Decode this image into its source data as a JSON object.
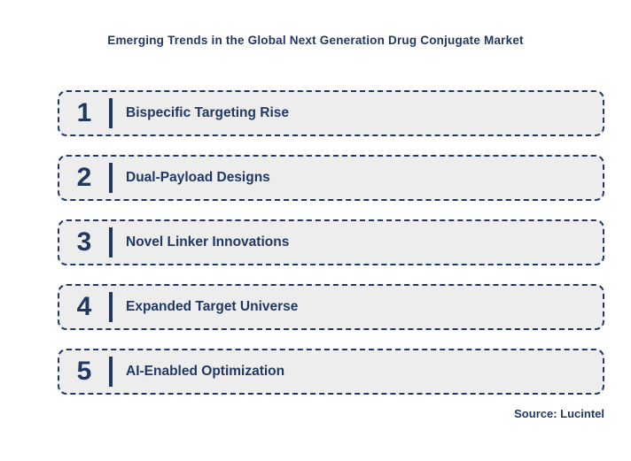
{
  "page": {
    "title": "Emerging Trends in the Global Next Generation Drug Conjugate Market",
    "source": "Source: Lucintel"
  },
  "rows": [
    {
      "number": "1",
      "label": "Bispecific Targeting Rise"
    },
    {
      "number": "2",
      "label": "Dual-Payload Designs"
    },
    {
      "number": "3",
      "label": "Novel Linker Innovations"
    },
    {
      "number": "4",
      "label": "Expanded Target Universe"
    },
    {
      "number": "5",
      "label": "AI-Enabled Optimization"
    }
  ],
  "colors": {
    "accent": "#1F3864",
    "row_background": "#EDEDED"
  }
}
